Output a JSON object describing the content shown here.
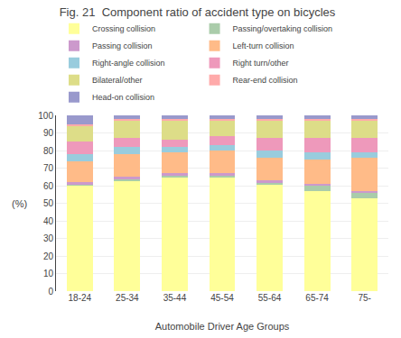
{
  "chart_data": {
    "type": "bar",
    "stacked": true,
    "title": "Fig. 21  Component ratio of accident type on bicycles",
    "xlabel": "Automobile Driver Age Groups",
    "ylabel": "(%)",
    "categories": [
      "18-24",
      "25-34",
      "35-44",
      "45-54",
      "55-64",
      "65-74",
      "75-"
    ],
    "series": [
      {
        "name": "Crossing collision",
        "color": "#ffff99",
        "values": [
          60,
          63,
          65,
          65,
          61,
          57,
          53
        ]
      },
      {
        "name": "Passing/overtaking collision",
        "color": "#aaccaa",
        "values": [
          1,
          1,
          1,
          1,
          1,
          3,
          3
        ]
      },
      {
        "name": "Passing collision",
        "color": "#cc99cc",
        "values": [
          1,
          1,
          1,
          1,
          1,
          1,
          1
        ]
      },
      {
        "name": "Left-turn collision",
        "color": "#ffbb88",
        "values": [
          12,
          13,
          12,
          13,
          13,
          14,
          19
        ]
      },
      {
        "name": "Right-angle collision",
        "color": "#99ccdd",
        "values": [
          4,
          4,
          3,
          3,
          4,
          4,
          3
        ]
      },
      {
        "name": "Right turn/other",
        "color": "#ee99bb",
        "values": [
          7,
          5,
          4,
          5,
          7,
          8,
          8
        ]
      },
      {
        "name": "Bilateral/other",
        "color": "#dddd88",
        "values": [
          9,
          10,
          11,
          9,
          10,
          10,
          10
        ]
      },
      {
        "name": "Rear-end collision",
        "color": "#ffaaaa",
        "values": [
          1,
          1,
          1,
          1,
          1,
          1,
          1
        ]
      },
      {
        "name": "Head-on collision",
        "color": "#9999cc",
        "values": [
          5,
          2,
          2,
          2,
          2,
          2,
          2
        ]
      }
    ],
    "ylim": [
      0,
      100
    ],
    "yticks": [
      0,
      10,
      20,
      30,
      40,
      50,
      60,
      70,
      80,
      90,
      100
    ],
    "grid": true,
    "legend": "top"
  }
}
